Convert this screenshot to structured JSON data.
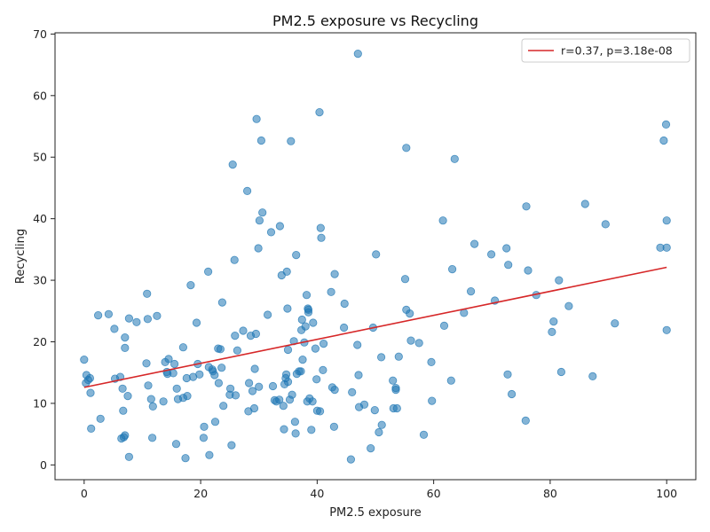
{
  "chart_data": {
    "type": "scatter",
    "title": "PM2.5 exposure vs Recycling",
    "xlabel": "PM2.5 exposure",
    "ylabel": "Recycling",
    "xlim": [
      -5,
      105
    ],
    "ylim": [
      -2.4,
      70.2
    ],
    "xticks": [
      0,
      20,
      40,
      60,
      80,
      100
    ],
    "yticks": [
      0,
      10,
      20,
      30,
      40,
      50,
      60,
      70
    ],
    "grid": false,
    "legend_position": "top-right",
    "colors": {
      "points": "#1f77b4",
      "fit_line": "#d62728"
    },
    "series": [
      {
        "points": [
          [
            0.0,
            17.1
          ],
          [
            0.3,
            13.3
          ],
          [
            0.4,
            14.6
          ],
          [
            0.7,
            13.8
          ],
          [
            1.0,
            14.1
          ],
          [
            1.1,
            11.7
          ],
          [
            1.2,
            5.9
          ],
          [
            2.4,
            24.3
          ],
          [
            2.8,
            7.5
          ],
          [
            4.2,
            24.5
          ],
          [
            5.2,
            22.1
          ],
          [
            5.3,
            14.0
          ],
          [
            6.2,
            14.3
          ],
          [
            6.4,
            4.3
          ],
          [
            6.6,
            12.4
          ],
          [
            6.7,
            8.8
          ],
          [
            6.8,
            4.5
          ],
          [
            7.0,
            4.8
          ],
          [
            7.0,
            20.7
          ],
          [
            7.0,
            19.0
          ],
          [
            7.5,
            11.2
          ],
          [
            7.7,
            23.8
          ],
          [
            7.7,
            1.3
          ],
          [
            9.0,
            23.2
          ],
          [
            10.7,
            16.5
          ],
          [
            10.8,
            27.8
          ],
          [
            10.9,
            23.7
          ],
          [
            11.0,
            12.9
          ],
          [
            11.5,
            10.7
          ],
          [
            11.7,
            4.4
          ],
          [
            11.8,
            9.5
          ],
          [
            12.5,
            24.2
          ],
          [
            13.6,
            10.3
          ],
          [
            13.9,
            16.7
          ],
          [
            14.2,
            15.1
          ],
          [
            14.3,
            14.8
          ],
          [
            14.5,
            17.2
          ],
          [
            15.3,
            14.9
          ],
          [
            15.5,
            16.4
          ],
          [
            15.8,
            3.4
          ],
          [
            15.9,
            12.4
          ],
          [
            16.1,
            10.7
          ],
          [
            17.0,
            19.1
          ],
          [
            17.0,
            10.9
          ],
          [
            17.4,
            1.1
          ],
          [
            17.6,
            14.1
          ],
          [
            17.7,
            11.2
          ],
          [
            18.3,
            29.2
          ],
          [
            18.7,
            14.3
          ],
          [
            19.3,
            23.1
          ],
          [
            19.5,
            16.4
          ],
          [
            19.8,
            14.7
          ],
          [
            20.5,
            4.4
          ],
          [
            20.6,
            6.2
          ],
          [
            21.3,
            31.4
          ],
          [
            21.4,
            15.9
          ],
          [
            21.5,
            1.6
          ],
          [
            22.0,
            15.5
          ],
          [
            22.1,
            15.2
          ],
          [
            22.4,
            14.6
          ],
          [
            22.5,
            7.0
          ],
          [
            23.0,
            18.9
          ],
          [
            23.1,
            13.3
          ],
          [
            23.4,
            18.8
          ],
          [
            23.6,
            15.8
          ],
          [
            23.7,
            26.4
          ],
          [
            23.9,
            9.6
          ],
          [
            25.0,
            11.4
          ],
          [
            25.1,
            12.4
          ],
          [
            25.3,
            3.2
          ],
          [
            25.5,
            48.8
          ],
          [
            25.8,
            33.3
          ],
          [
            25.9,
            21.0
          ],
          [
            26.0,
            11.3
          ],
          [
            26.3,
            18.6
          ],
          [
            27.3,
            21.8
          ],
          [
            28.0,
            44.5
          ],
          [
            28.2,
            8.7
          ],
          [
            28.3,
            13.3
          ],
          [
            28.6,
            21.0
          ],
          [
            28.9,
            12.0
          ],
          [
            29.2,
            9.2
          ],
          [
            29.3,
            15.6
          ],
          [
            29.5,
            21.3
          ],
          [
            29.6,
            56.2
          ],
          [
            29.9,
            35.2
          ],
          [
            30.0,
            12.7
          ],
          [
            30.1,
            39.7
          ],
          [
            30.4,
            52.7
          ],
          [
            30.6,
            41.0
          ],
          [
            31.5,
            24.4
          ],
          [
            32.1,
            37.8
          ],
          [
            32.4,
            12.8
          ],
          [
            32.7,
            10.5
          ],
          [
            33.0,
            10.3
          ],
          [
            33.5,
            10.6
          ],
          [
            33.6,
            38.8
          ],
          [
            33.9,
            30.8
          ],
          [
            34.2,
            9.6
          ],
          [
            34.3,
            5.8
          ],
          [
            34.4,
            13.1
          ],
          [
            34.6,
            14.1
          ],
          [
            34.7,
            14.7
          ],
          [
            34.8,
            31.4
          ],
          [
            34.9,
            25.4
          ],
          [
            35.0,
            18.7
          ],
          [
            35.0,
            13.5
          ],
          [
            35.3,
            10.6
          ],
          [
            35.5,
            52.6
          ],
          [
            35.7,
            11.4
          ],
          [
            36.0,
            20.1
          ],
          [
            36.2,
            7.0
          ],
          [
            36.3,
            5.1
          ],
          [
            36.4,
            34.1
          ],
          [
            36.5,
            14.8
          ],
          [
            36.9,
            15.2
          ],
          [
            37.2,
            15.2
          ],
          [
            37.3,
            21.9
          ],
          [
            37.4,
            23.6
          ],
          [
            37.5,
            17.1
          ],
          [
            37.8,
            19.9
          ],
          [
            38.0,
            22.5
          ],
          [
            38.2,
            27.6
          ],
          [
            38.3,
            10.3
          ],
          [
            38.4,
            25.4
          ],
          [
            38.5,
            24.8
          ],
          [
            38.5,
            25.2
          ],
          [
            38.7,
            10.8
          ],
          [
            39.0,
            5.7
          ],
          [
            39.2,
            10.3
          ],
          [
            39.3,
            23.1
          ],
          [
            39.7,
            18.9
          ],
          [
            39.9,
            13.9
          ],
          [
            40.0,
            8.8
          ],
          [
            40.4,
            57.3
          ],
          [
            40.5,
            8.7
          ],
          [
            40.6,
            38.5
          ],
          [
            40.7,
            36.9
          ],
          [
            41.0,
            15.4
          ],
          [
            41.1,
            19.7
          ],
          [
            42.4,
            28.1
          ],
          [
            42.6,
            12.6
          ],
          [
            42.9,
            6.2
          ],
          [
            43.0,
            31.0
          ],
          [
            43.0,
            12.2
          ],
          [
            44.6,
            22.3
          ],
          [
            44.7,
            26.2
          ],
          [
            45.8,
            0.9
          ],
          [
            46.0,
            11.8
          ],
          [
            46.9,
            19.5
          ],
          [
            47.0,
            66.8
          ],
          [
            47.1,
            14.6
          ],
          [
            47.2,
            9.4
          ],
          [
            48.1,
            9.8
          ],
          [
            49.2,
            2.7
          ],
          [
            49.6,
            22.3
          ],
          [
            49.9,
            8.9
          ],
          [
            50.1,
            34.2
          ],
          [
            50.6,
            5.3
          ],
          [
            51.0,
            17.5
          ],
          [
            51.1,
            6.5
          ],
          [
            53.0,
            13.7
          ],
          [
            53.1,
            9.2
          ],
          [
            53.5,
            12.5
          ],
          [
            53.5,
            12.2
          ],
          [
            53.7,
            9.2
          ],
          [
            54.0,
            17.6
          ],
          [
            55.1,
            30.2
          ],
          [
            55.3,
            25.2
          ],
          [
            55.3,
            51.5
          ],
          [
            55.9,
            24.6
          ],
          [
            56.1,
            20.2
          ],
          [
            57.5,
            19.8
          ],
          [
            58.3,
            4.9
          ],
          [
            59.6,
            16.7
          ],
          [
            59.7,
            10.4
          ],
          [
            61.6,
            39.7
          ],
          [
            61.8,
            22.6
          ],
          [
            63.0,
            13.7
          ],
          [
            63.2,
            31.8
          ],
          [
            63.6,
            49.7
          ],
          [
            65.2,
            24.7
          ],
          [
            66.4,
            28.2
          ],
          [
            67.0,
            35.9
          ],
          [
            69.9,
            34.2
          ],
          [
            70.5,
            26.7
          ],
          [
            72.5,
            35.2
          ],
          [
            72.7,
            14.7
          ],
          [
            72.8,
            32.5
          ],
          [
            73.4,
            11.5
          ],
          [
            75.8,
            7.2
          ],
          [
            75.9,
            42.0
          ],
          [
            76.2,
            31.6
          ],
          [
            77.6,
            27.6
          ],
          [
            80.3,
            21.6
          ],
          [
            80.6,
            23.3
          ],
          [
            81.5,
            30.0
          ],
          [
            81.9,
            15.1
          ],
          [
            83.2,
            25.8
          ],
          [
            86.0,
            42.4
          ],
          [
            87.3,
            14.4
          ],
          [
            89.5,
            39.1
          ],
          [
            91.1,
            23.0
          ],
          [
            98.9,
            35.3
          ],
          [
            99.5,
            52.7
          ],
          [
            99.9,
            55.3
          ],
          [
            100.0,
            21.9
          ],
          [
            100.0,
            39.7
          ],
          [
            100.0,
            35.3
          ]
        ]
      },
      {
        "type": "line",
        "name": "r=0.37, p=3.18e-08",
        "x": [
          0,
          100
        ],
        "y": [
          12.6,
          32.1
        ]
      }
    ]
  }
}
